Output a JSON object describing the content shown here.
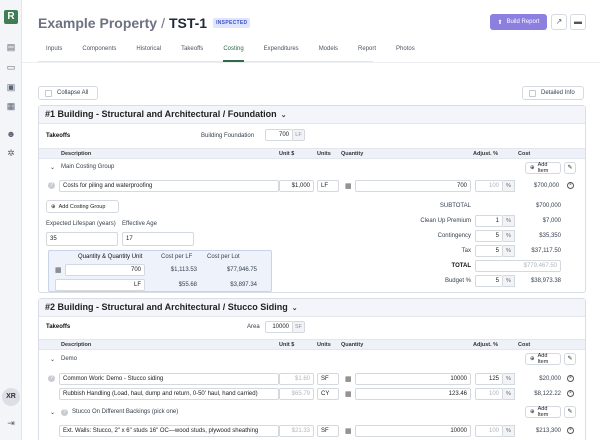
{
  "rail": {
    "logo": "R",
    "icons": [
      "document-icon",
      "archive-icon",
      "box-icon",
      "grid-icon",
      "people-icon",
      "settings-icon"
    ],
    "avatar": "XR"
  },
  "header": {
    "property": "Example Property",
    "separator": "/",
    "code": "TST-1",
    "badge": "INSPECTED",
    "build_report": "Build Report"
  },
  "tabs": [
    "Inputs",
    "Components",
    "Historical",
    "Takeoffs",
    "Costing",
    "Expenditures",
    "Models",
    "Report",
    "Photos"
  ],
  "active_tab": "Costing",
  "controls": {
    "collapse_all": "Collapse All",
    "detailed_info": "Detailed Info"
  },
  "section1": {
    "title": "#1 Building - Structural and Architectural / Foundation",
    "takeoffs_label": "Takeoffs",
    "takeoff_name": "Building Foundation",
    "takeoff_value": "700",
    "takeoff_unit": "LF",
    "columns": {
      "description": "Description",
      "unit": "Unit $",
      "units": "Units",
      "quantity": "Quantity",
      "adjust": "Adjust. %",
      "cost": "Cost"
    },
    "group": "Main Costing Group",
    "add_item": "Add Item",
    "item": {
      "description": "Costs for piling and waterproofing",
      "unit_price": "$1,000",
      "units": "LF",
      "quantity": "700",
      "adjust": "100",
      "pct": "%",
      "cost": "$700,000"
    },
    "add_group": "Add Costing Group",
    "lifespan_label": "Expected Lifespan (years)",
    "lifespan": "35",
    "eff_age_label": "Effective Age",
    "eff_age": "17",
    "qtable": {
      "h1": "Quantity & Quantity Unit",
      "h2": "Cost per LF",
      "h3": "Cost per Lot",
      "r1": {
        "qty": "700",
        "cost_lf": "$1,113.53",
        "cost_lot": "$77,946.75"
      },
      "r2": {
        "unit": "LF",
        "cost_lf": "$55.68",
        "cost_lot": "$3,897.34"
      }
    },
    "summary": {
      "subtotal_label": "SUBTOTAL",
      "subtotal": "$700,000",
      "cleanup_label": "Clean Up Premium",
      "cleanup_pct": "1",
      "cleanup": "$7,000",
      "contingency_label": "Contingency",
      "contingency_pct": "5",
      "contingency": "$35,350",
      "tax_label": "Tax",
      "tax_pct": "5",
      "tax": "$37,117.50",
      "total_label": "TOTAL",
      "total": "$779,467.50",
      "budget_label": "Budget %",
      "budget_pct": "5",
      "budget": "$38,973.38"
    }
  },
  "section2": {
    "title": "#2 Building - Structural and Architectural / Stucco Siding",
    "takeoffs_label": "Takeoffs",
    "takeoff_name": "Area",
    "takeoff_value": "10000",
    "takeoff_unit": "SF",
    "group1": "Demo",
    "add_item": "Add Item",
    "items": [
      {
        "description": "Common Work: Demo - Stucco siding",
        "unit_price": "$1.60",
        "units": "SF",
        "quantity": "10000",
        "adjust": "125",
        "cost": "$20,000"
      },
      {
        "description": "Rubbish Handling (Load, haul, dump and return, 0-50' haul, hand carried)",
        "unit_price": "$65.79",
        "units": "CY",
        "quantity": "123.46",
        "adjust": "100",
        "cost": "$8,122.22"
      }
    ],
    "group2": "Stucco On Different Backings (pick one)",
    "item3": {
      "description": "Ext. Walls: Stucco, 2\" x 6\" studs 16\" OC—wood studs, plywood sheathing",
      "unit_price": "$21.33",
      "units": "SF",
      "quantity": "10000",
      "adjust": "100",
      "cost": "$213,300"
    }
  }
}
